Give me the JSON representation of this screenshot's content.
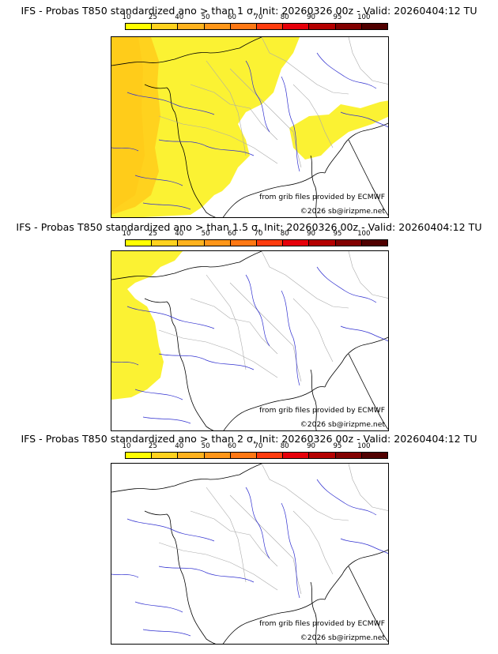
{
  "panels": [
    {
      "title": "IFS - Probas T850  standardized ano > than 1 σ, Init: 20260326 00z - Valid: 20260404:12 TU",
      "source": "from grib files provided by ECMWF",
      "copyright": "©2026 sb@irizpme.net",
      "coverage": "high"
    },
    {
      "title": "IFS - Probas T850  standardized ano > than 1.5 σ, Init: 20260326 00z - Valid: 20260404:12 TU",
      "source": "from grib files provided by ECMWF",
      "copyright": "©2026 sb@irizpme.net",
      "coverage": "medium"
    },
    {
      "title": "IFS - Probas T850  standardized ano > than 2 σ, Init: 20260326 00z - Valid: 20260404:12 TU",
      "source": "from grib files provided by ECMWF",
      "copyright": "©2026 sb@irizpme.net",
      "coverage": "none"
    }
  ],
  "colorbar": {
    "ticks": [
      "10",
      "25",
      "40",
      "50",
      "60",
      "70",
      "80",
      "90",
      "95",
      "100"
    ],
    "colors": [
      "#ffff00",
      "#ffd21e",
      "#ffb21e",
      "#ff9619",
      "#ff7814",
      "#ff3c0f",
      "#e6000a",
      "#b40000",
      "#820000",
      "#500000"
    ]
  },
  "palette": {
    "prob_10_25": "#fbf233",
    "prob_25_40": "#ffd21e",
    "coast": "#000000",
    "rivers": "#3030d0",
    "borders": "#aaaaaa"
  }
}
